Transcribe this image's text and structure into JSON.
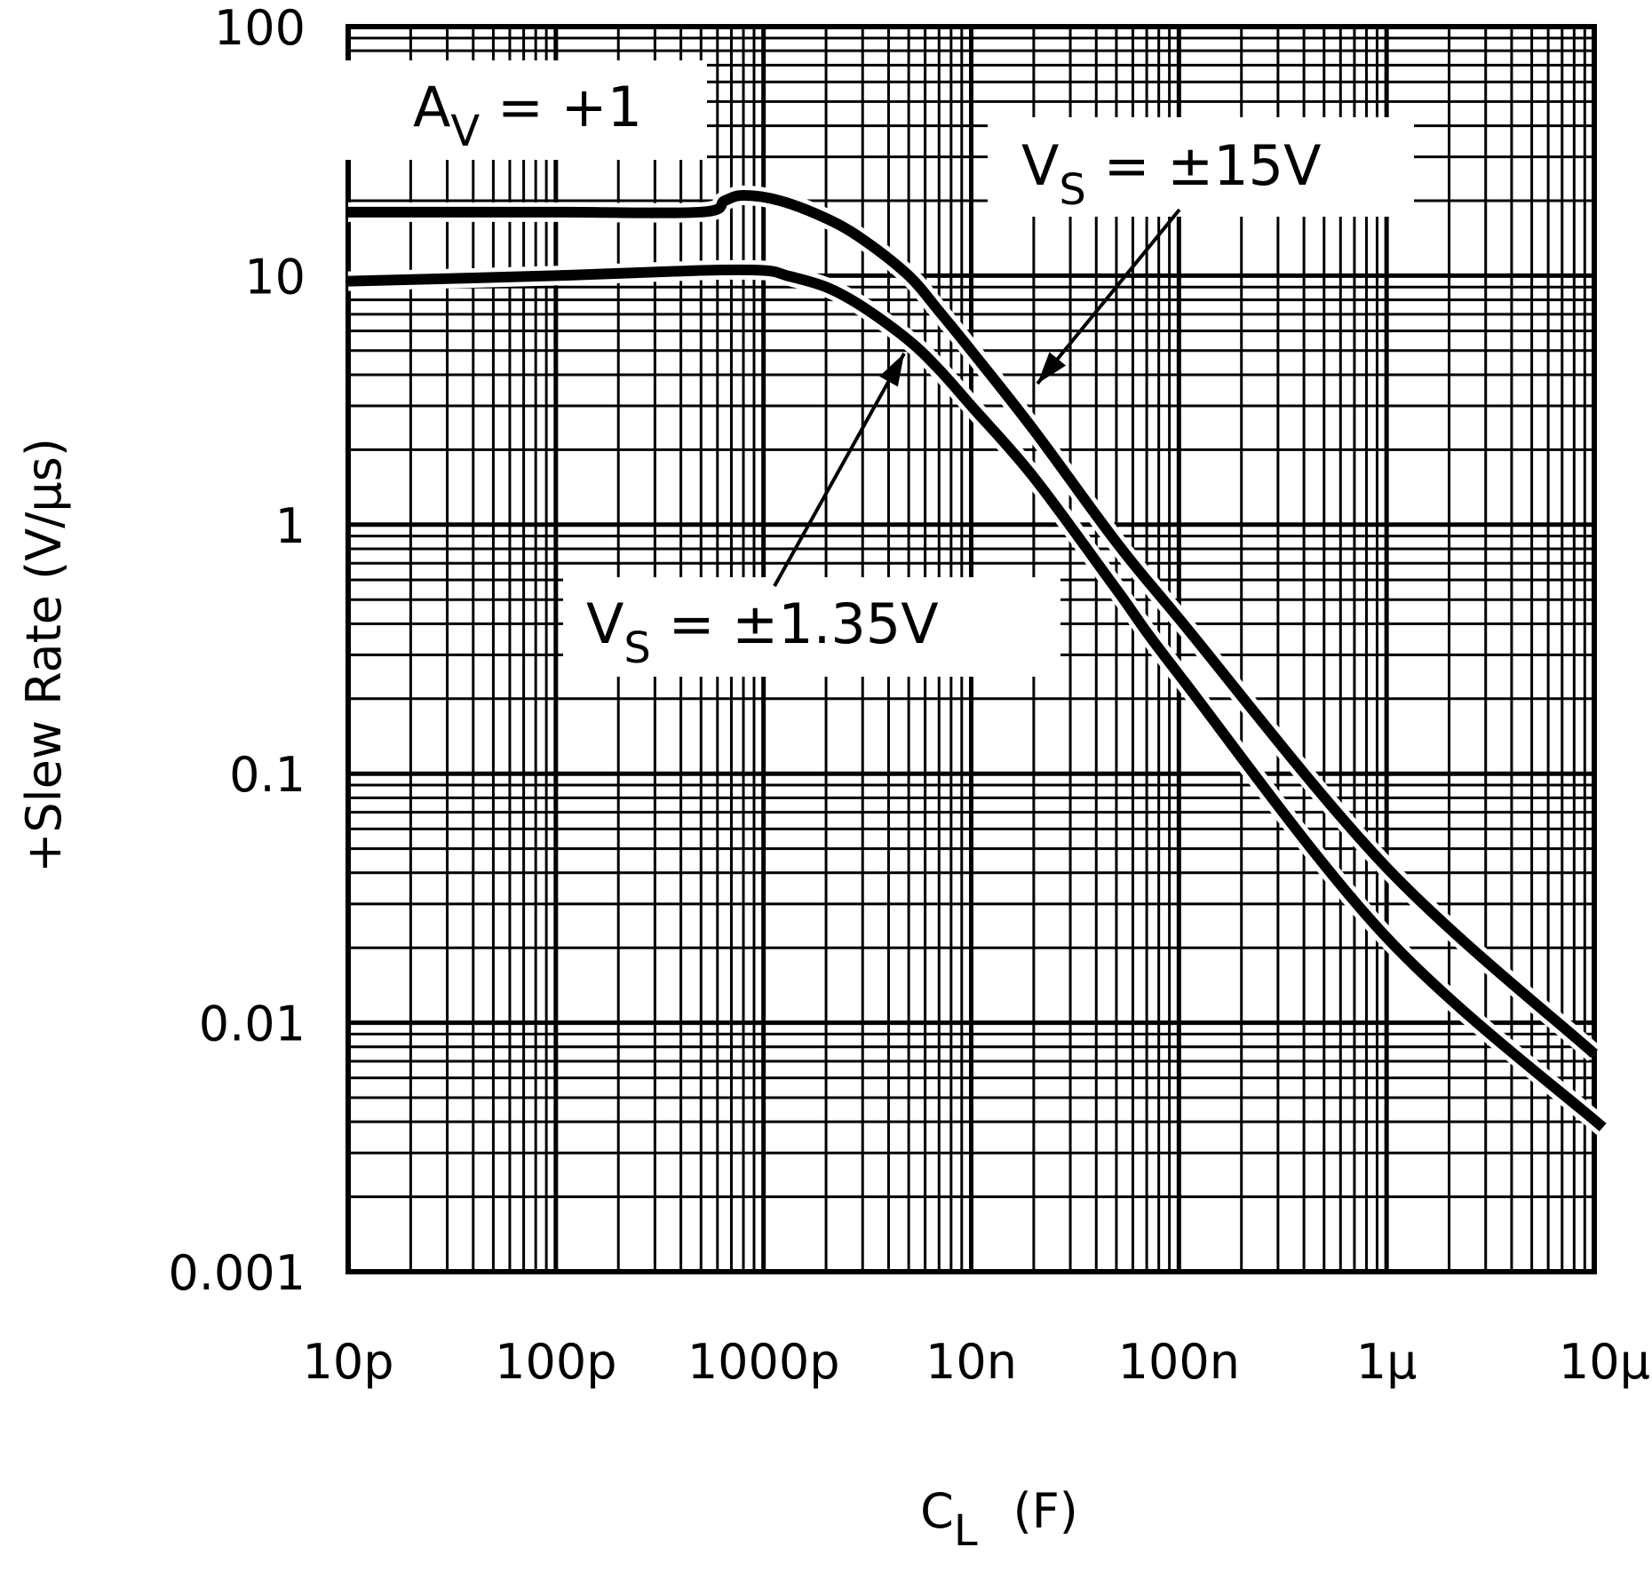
{
  "chart_data": {
    "type": "line",
    "title": "",
    "xlabel": "C",
    "xlabel_sub": "L",
    "xlabel_unit": "(F)",
    "ylabel": "+Slew Rate (V/μs)",
    "x_scale": "log",
    "y_scale": "log",
    "xlim": [
      1e-11,
      1e-05
    ],
    "ylim": [
      0.001,
      100
    ],
    "grid": true,
    "x_ticks": [
      1e-11,
      1e-10,
      1e-09,
      1e-08,
      1e-07,
      1e-06,
      1e-05
    ],
    "x_tick_labels": [
      "10p",
      "100p",
      "1000p",
      "10n",
      "100n",
      "1μ",
      "10μ"
    ],
    "y_ticks": [
      0.001,
      0.01,
      0.1,
      1,
      10,
      100
    ],
    "y_tick_labels": [
      "0.001",
      "0.01",
      "0.1",
      "1",
      "10",
      "100"
    ],
    "series": [
      {
        "name": "V_S = ±15V",
        "color": "#000000",
        "x": [
          1e-11,
          1e-10,
          5e-10,
          6.5e-10,
          8e-10,
          1.2e-09,
          2e-09,
          3e-09,
          5e-09,
          7e-09,
          1e-08,
          2e-08,
          5e-08,
          1e-07,
          1e-06,
          1e-05
        ],
        "y": [
          18.0,
          18.0,
          18.0,
          20.0,
          21.0,
          20.0,
          17.0,
          14.0,
          10.0,
          7.2,
          5.0,
          2.4,
          0.85,
          0.42,
          0.042,
          0.0075
        ]
      },
      {
        "name": "V_S = ±1.35V",
        "color": "#000000",
        "x": [
          1e-11,
          1e-10,
          5e-10,
          1e-09,
          1.3e-09,
          2e-09,
          3e-09,
          5e-09,
          7e-09,
          1e-08,
          2e-08,
          5e-08,
          1e-07,
          1e-06,
          1.1e-05
        ],
        "y": [
          9.5,
          10.0,
          10.5,
          10.5,
          10.0,
          9.0,
          7.5,
          5.5,
          4.2,
          3.0,
          1.55,
          0.55,
          0.25,
          0.022,
          0.0038
        ]
      }
    ],
    "annotations": [
      {
        "main": "A",
        "sub": "V",
        "rest": " =  +1"
      },
      {
        "main": "V",
        "sub": "S",
        "rest": " =  ±15V"
      },
      {
        "main": "V",
        "sub": "S",
        "rest": " =  ±1.35V"
      }
    ]
  }
}
